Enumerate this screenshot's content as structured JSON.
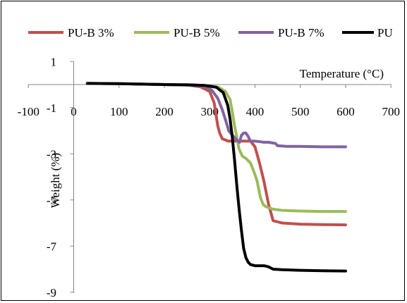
{
  "chart_data": {
    "type": "line",
    "title": "",
    "xlabel": "Temperature (°C)",
    "ylabel": "Weight (%)",
    "xlim": [
      -100,
      700
    ],
    "ylim": [
      -9,
      1
    ],
    "x_ticks": [
      -100,
      0,
      100,
      200,
      300,
      400,
      500,
      600,
      700
    ],
    "x_tick_labels": [
      "-100",
      "0",
      "100",
      "200",
      "300",
      "400",
      "500",
      "600",
      "700"
    ],
    "y_ticks": [
      1,
      -1,
      -3,
      -5,
      -7,
      -9
    ],
    "y_tick_labels": [
      "1",
      "-1",
      "-3",
      "-5",
      "-7",
      "-9"
    ],
    "grid": false,
    "legend_position": "top",
    "series": [
      {
        "name": "PU-B 3%",
        "color": "#c0504d",
        "x": [
          30,
          100,
          200,
          250,
          280,
          300,
          310,
          318,
          322,
          328,
          335,
          340,
          360,
          390,
          400,
          410,
          420,
          430,
          440,
          460,
          500,
          550,
          600
        ],
        "y": [
          0.05,
          0.04,
          0.0,
          -0.02,
          -0.1,
          -0.3,
          -0.8,
          -1.8,
          -2.1,
          -2.35,
          -2.4,
          -2.45,
          -2.45,
          -2.45,
          -2.7,
          -3.4,
          -4.2,
          -5.2,
          -5.9,
          -6.0,
          -6.05,
          -6.07,
          -6.08
        ]
      },
      {
        "name": "PU-B 5%",
        "color": "#9bbb59",
        "x": [
          30,
          100,
          200,
          250,
          300,
          320,
          335,
          345,
          350,
          355,
          360,
          365,
          372,
          380,
          390,
          400,
          405,
          412,
          418,
          425,
          440,
          460,
          500,
          550,
          600
        ],
        "y": [
          0.05,
          0.04,
          0.0,
          -0.02,
          -0.06,
          -0.12,
          -0.3,
          -0.65,
          -1.2,
          -1.8,
          -2.3,
          -2.8,
          -3.1,
          -3.2,
          -3.4,
          -3.9,
          -4.2,
          -4.9,
          -5.2,
          -5.3,
          -5.4,
          -5.45,
          -5.48,
          -5.5,
          -5.5
        ]
      },
      {
        "name": "PU-B 7%",
        "color": "#8064a2",
        "x": [
          30,
          100,
          200,
          250,
          290,
          305,
          318,
          328,
          336,
          340,
          342,
          348,
          355,
          362,
          366,
          370,
          375,
          380,
          385,
          390,
          400,
          420,
          430,
          445,
          450,
          470,
          500,
          550,
          600
        ],
        "y": [
          0.05,
          0.04,
          0.0,
          -0.02,
          -0.08,
          -0.25,
          -0.6,
          -1.1,
          -1.6,
          -1.85,
          -2.0,
          -2.15,
          -2.3,
          -2.45,
          -2.5,
          -2.2,
          -2.1,
          -2.1,
          -2.25,
          -2.45,
          -2.45,
          -2.5,
          -2.5,
          -2.55,
          -2.65,
          -2.68,
          -2.68,
          -2.7,
          -2.7
        ]
      },
      {
        "name": "PU",
        "color": "#000000",
        "x": [
          30,
          100,
          200,
          250,
          290,
          315,
          330,
          340,
          345,
          350,
          355,
          360,
          365,
          370,
          375,
          380,
          385,
          390,
          400,
          420,
          430,
          440,
          460,
          500,
          550,
          600
        ],
        "y": [
          0.05,
          0.04,
          0.0,
          -0.01,
          -0.04,
          -0.12,
          -0.35,
          -0.9,
          -1.5,
          -2.3,
          -3.3,
          -4.4,
          -5.4,
          -6.3,
          -7.1,
          -7.5,
          -7.7,
          -7.8,
          -7.85,
          -7.85,
          -7.9,
          -8.0,
          -8.02,
          -8.05,
          -8.07,
          -8.08
        ]
      }
    ]
  }
}
